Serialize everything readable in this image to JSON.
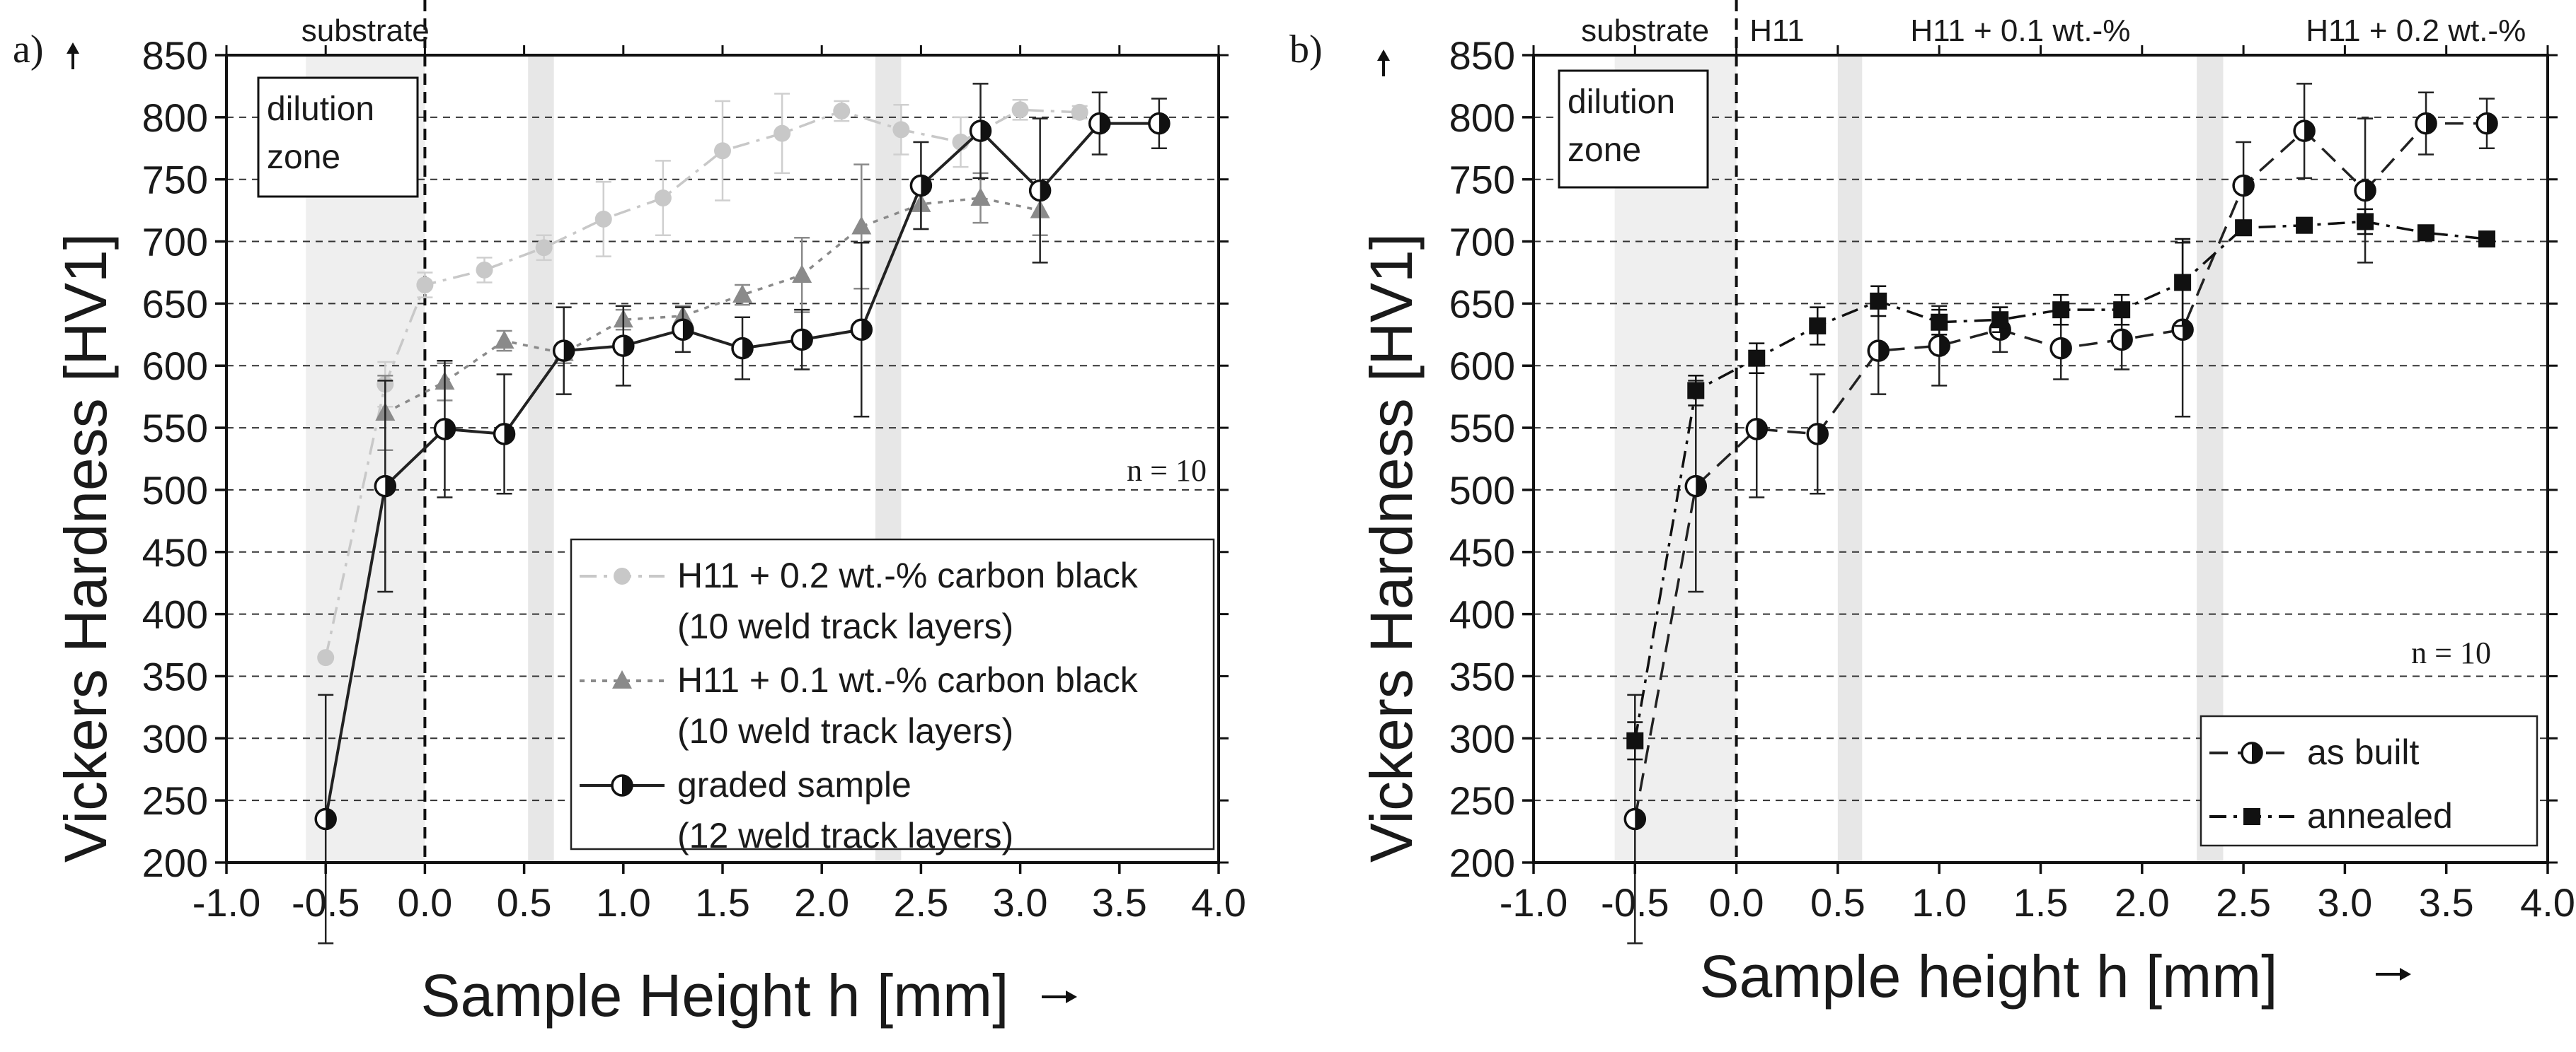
{
  "chart_data": [
    {
      "id": "a",
      "panel_label": "a)",
      "type": "line",
      "xlabel": "Sample Height h [mm]",
      "ylabel": "Vickers Hardness [HV1]",
      "xlim": [
        -1.0,
        4.0
      ],
      "ylim": [
        200,
        850
      ],
      "xticks": [
        "-1.0",
        "-0.5",
        "0.0",
        "0.5",
        "1.0",
        "1.5",
        "2.0",
        "2.5",
        "3.0",
        "3.5",
        "4.0"
      ],
      "yticks": [
        "200",
        "250",
        "300",
        "350",
        "400",
        "450",
        "500",
        "550",
        "600",
        "650",
        "700",
        "750",
        "800",
        "850"
      ],
      "gridlines_y": [
        250,
        300,
        350,
        400,
        450,
        500,
        550,
        600,
        650,
        700,
        750,
        800
      ],
      "shaded_bands": [
        [
          -0.6,
          0.0
        ],
        [
          0.52,
          0.65
        ],
        [
          2.27,
          2.4
        ]
      ],
      "substrate_boundary_x": 0.0,
      "region_labels": [
        {
          "text": "substrate",
          "x": -0.3
        }
      ],
      "dilution_zone_label": [
        "dilution",
        "zone"
      ],
      "n_label": "n = 10",
      "series": [
        {
          "name": "H11 + 0.2 wt.-% carbon black",
          "name_line2": "(10 weld track layers)",
          "marker": "circle",
          "color": "#c8c8c8",
          "line_style": "dashdot",
          "x": [
            -0.5,
            -0.2,
            0.0,
            0.3,
            0.6,
            0.9,
            1.2,
            1.5,
            1.8,
            2.1,
            2.4,
            2.7,
            3.0,
            3.3
          ],
          "y": [
            365,
            585,
            665,
            677,
            695,
            718,
            735,
            773,
            787,
            805,
            790,
            780,
            806,
            804
          ],
          "err": [
            0,
            18,
            10,
            10,
            10,
            30,
            30,
            40,
            32,
            8,
            20,
            20,
            8,
            5
          ]
        },
        {
          "name": "H11 + 0.1 wt.-% carbon black",
          "name_line2": "(10 weld track layers)",
          "marker": "triangle",
          "color": "#8a8a8a",
          "line_style": "dot",
          "x": [
            -0.2,
            0.1,
            0.4,
            0.7,
            1.0,
            1.3,
            1.6,
            1.9,
            2.2,
            2.5,
            2.8,
            3.1
          ],
          "y": [
            562,
            587,
            620,
            610,
            637,
            640,
            657,
            673,
            712,
            730,
            735,
            725
          ],
          "err": [
            30,
            15,
            8,
            8,
            8,
            8,
            8,
            30,
            50,
            20,
            20,
            20
          ]
        },
        {
          "name": "graded sample",
          "name_line2": "(12 weld track layers)",
          "marker": "half-circle",
          "color": "#222222",
          "line_style": "solid",
          "x": [
            -0.5,
            -0.2,
            0.1,
            0.4,
            0.7,
            1.0,
            1.3,
            1.6,
            1.9,
            2.2,
            2.5,
            2.8,
            3.1,
            3.4,
            3.7
          ],
          "y": [
            235,
            503,
            549,
            545,
            612,
            616,
            629,
            614,
            621,
            629,
            745,
            789,
            741,
            795,
            795
          ],
          "err": [
            100,
            85,
            55,
            48,
            35,
            32,
            18,
            25,
            24,
            70,
            35,
            38,
            58,
            25,
            20
          ]
        }
      ]
    },
    {
      "id": "b",
      "panel_label": "b)",
      "type": "line",
      "xlabel": "Sample height h [mm]",
      "ylabel": "Vickers Hardness [HV1]",
      "xlim": [
        -1.0,
        4.0
      ],
      "ylim": [
        200,
        850
      ],
      "xticks": [
        "-1.0",
        "-0.5",
        "0.0",
        "0.5",
        "1.0",
        "1.5",
        "2.0",
        "2.5",
        "3.0",
        "3.5",
        "4.0"
      ],
      "yticks": [
        "200",
        "250",
        "300",
        "350",
        "400",
        "450",
        "500",
        "550",
        "600",
        "650",
        "700",
        "750",
        "800",
        "850"
      ],
      "gridlines_y": [
        250,
        300,
        350,
        400,
        450,
        500,
        550,
        600,
        650,
        700,
        750,
        800
      ],
      "shaded_bands": [
        [
          -0.6,
          0.0
        ],
        [
          0.5,
          0.62
        ],
        [
          2.27,
          2.4
        ]
      ],
      "substrate_boundary_x": 0.0,
      "region_labels": [
        {
          "text": "substrate",
          "x": -0.45
        },
        {
          "text": "H11",
          "x": 0.2
        },
        {
          "text": "H11 + 0.1 wt.-%",
          "x": 1.4
        },
        {
          "text": "H11 + 0.2 wt.-%",
          "x": 3.35
        }
      ],
      "dilution_zone_label": [
        "dilution",
        "zone"
      ],
      "n_label": "n = 10",
      "series": [
        {
          "name": "as built",
          "marker": "half-circle",
          "color": "#222222",
          "line_style": "dash",
          "x": [
            -0.5,
            -0.2,
            0.1,
            0.4,
            0.7,
            1.0,
            1.3,
            1.6,
            1.9,
            2.2,
            2.5,
            2.8,
            3.1,
            3.4,
            3.7
          ],
          "y": [
            235,
            503,
            549,
            545,
            612,
            616,
            629,
            614,
            621,
            629,
            745,
            789,
            741,
            795,
            795
          ],
          "err": [
            100,
            85,
            55,
            48,
            35,
            32,
            18,
            25,
            24,
            70,
            35,
            38,
            58,
            25,
            20
          ]
        },
        {
          "name": "annealed",
          "marker": "square",
          "color": "#111111",
          "line_style": "dashdot",
          "x": [
            -0.5,
            -0.2,
            0.1,
            0.4,
            0.7,
            1.0,
            1.3,
            1.6,
            1.9,
            2.2,
            2.5,
            2.8,
            3.1,
            3.4,
            3.7
          ],
          "y": [
            298,
            580,
            606,
            632,
            652,
            635,
            637,
            645,
            645,
            667,
            711,
            713,
            716,
            707,
            702
          ],
          "err": [
            15,
            12,
            12,
            15,
            12,
            10,
            10,
            12,
            12,
            35,
            6,
            6,
            10,
            5,
            5
          ]
        }
      ]
    }
  ]
}
